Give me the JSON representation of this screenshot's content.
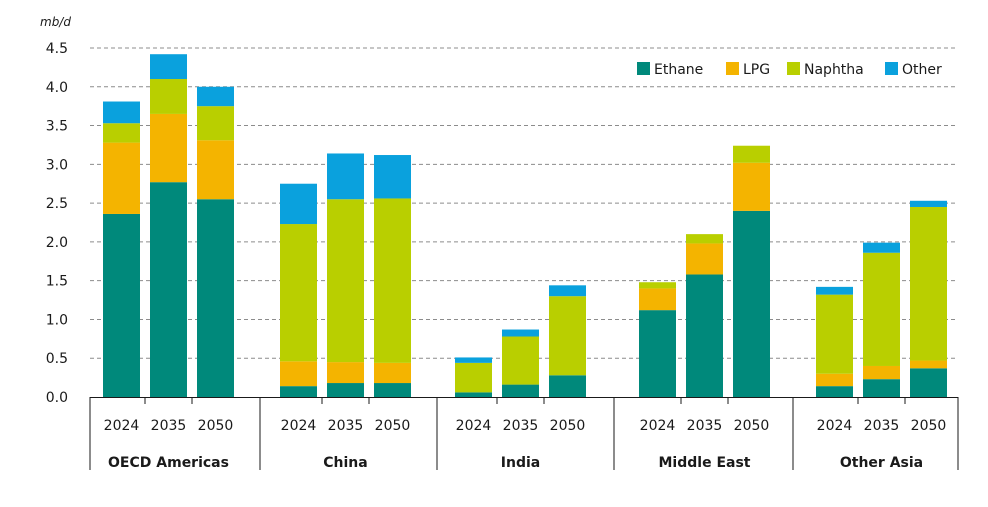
{
  "chart_data": {
    "type": "bar",
    "stacked": true,
    "unit_label": "mb/d",
    "ylim": [
      0,
      4.5
    ],
    "y_ticks": [
      "0.0",
      "0.5",
      "1.0",
      "1.5",
      "2.0",
      "2.5",
      "3.0",
      "3.5",
      "4.0",
      "4.5"
    ],
    "grid": true,
    "legend_position": "top-right",
    "groups": [
      {
        "name": "OECD Americas",
        "years": [
          "2024",
          "2035",
          "2050"
        ]
      },
      {
        "name": "China",
        "years": [
          "2024",
          "2035",
          "2050"
        ]
      },
      {
        "name": "India",
        "years": [
          "2024",
          "2035",
          "2050"
        ]
      },
      {
        "name": "Middle East",
        "years": [
          "2024",
          "2035",
          "2050"
        ]
      },
      {
        "name": "Other Asia",
        "years": [
          "2024",
          "2035",
          "2050"
        ]
      }
    ],
    "series": [
      {
        "name": "Ethane",
        "color": "#00897b",
        "values": [
          2.36,
          2.77,
          2.55,
          0.14,
          0.18,
          0.18,
          0.06,
          0.16,
          0.28,
          1.12,
          1.58,
          2.4,
          0.14,
          0.23,
          0.37
        ]
      },
      {
        "name": "LPG",
        "color": "#f4b400",
        "values": [
          0.92,
          0.88,
          0.76,
          0.32,
          0.27,
          0.26,
          0.0,
          0.0,
          0.0,
          0.28,
          0.4,
          0.62,
          0.16,
          0.17,
          0.1
        ]
      },
      {
        "name": "Naphtha",
        "color": "#b9cf00",
        "values": [
          0.25,
          0.45,
          0.44,
          1.77,
          2.1,
          2.12,
          0.38,
          0.62,
          1.02,
          0.08,
          0.12,
          0.22,
          1.02,
          1.46,
          1.98
        ]
      },
      {
        "name": "Other",
        "color": "#0aa1dd",
        "values": [
          0.28,
          0.32,
          0.25,
          0.52,
          0.59,
          0.56,
          0.07,
          0.09,
          0.14,
          0.0,
          0.0,
          0.0,
          0.1,
          0.13,
          0.08
        ]
      }
    ]
  }
}
